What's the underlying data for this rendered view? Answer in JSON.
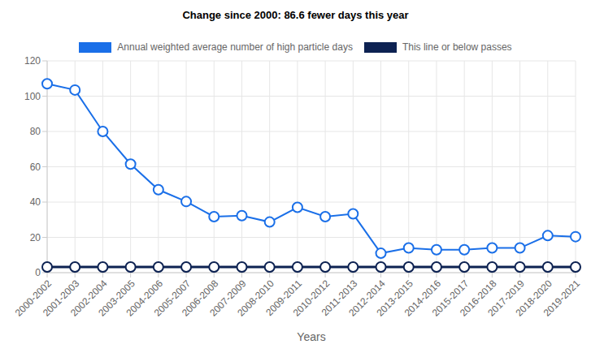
{
  "chart_data": {
    "type": "line",
    "title": "Change since 2000: 86.6 fewer days this year",
    "x_label": "Years",
    "categories": [
      "2000-2002",
      "2001-2003",
      "2002-2004",
      "2003-2005",
      "2004-2006",
      "2005-2007",
      "2006-2008",
      "2007-2009",
      "2008-2010",
      "2009-2011",
      "2010-2012",
      "2011-2013",
      "2012-2014",
      "2013-2015",
      "2014-2016",
      "2015-2017",
      "2016-2018",
      "2017-2019",
      "2018-2020",
      "2019-2021"
    ],
    "series": [
      {
        "name": "Annual weighted average number of high particle days",
        "color": "#1a6fe8",
        "marker": "circle",
        "values": [
          107,
          103.5,
          80,
          61.5,
          47,
          40.3,
          31.7,
          32.3,
          28.7,
          37,
          31.7,
          33.3,
          11,
          14,
          13,
          13,
          14,
          14,
          21,
          20.4
        ]
      },
      {
        "name": "This line or below passes",
        "color": "#0d2252",
        "marker": "circle",
        "values": [
          3.2,
          3.2,
          3.2,
          3.2,
          3.2,
          3.2,
          3.2,
          3.2,
          3.2,
          3.2,
          3.2,
          3.2,
          3.2,
          3.2,
          3.2,
          3.2,
          3.2,
          3.2,
          3.2,
          3.2
        ]
      }
    ],
    "ylim": [
      0,
      120
    ],
    "yticks": [
      0,
      20,
      40,
      60,
      80,
      100,
      120
    ],
    "grid": true,
    "legend": "top"
  }
}
